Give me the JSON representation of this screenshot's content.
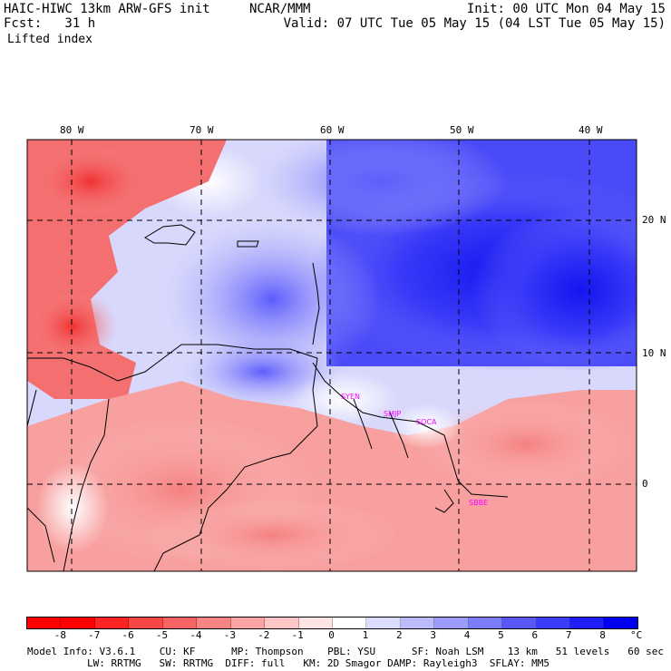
{
  "header": {
    "model_title": "HAIC-HIWC 13km ARW-GFS init",
    "org": "NCAR/MMM",
    "init": "Init: 00 UTC Mon 04 May 15",
    "fcst": "Fcst:   31 h",
    "valid": "Valid: 07 UTC Tue 05 May 15 (04 LST Tue 05 May 15)",
    "field": "Lifted index"
  },
  "map": {
    "lon_labels": [
      "80 W",
      "70 W",
      "60 W",
      "50 W",
      "40 W"
    ],
    "lat_labels": [
      "20 N",
      "10 N",
      "0"
    ],
    "city_labels": [
      "SYEN",
      "SMJP",
      "SOCA",
      "SBBE"
    ]
  },
  "colorbar": {
    "labels": [
      "-8",
      "-7",
      "-6",
      "-5",
      "-4",
      "-3",
      "-2",
      "-1",
      "0",
      "1",
      "2",
      "3",
      "4",
      "5",
      "6",
      "7",
      "8"
    ],
    "unit": "°C",
    "colors": [
      "#ff0000",
      "#ff2424",
      "#fb4646",
      "#f86464",
      "#f88484",
      "#fca4a4",
      "#fec6c6",
      "#ffe4e4",
      "#ffffff",
      "#dcdcff",
      "#bcbcfc",
      "#9c9cfc",
      "#7c7cfc",
      "#5858fc",
      "#3c3cfc",
      "#1e1ef8",
      "#0000f0"
    ]
  },
  "footer": {
    "line1": "Model Info: V3.6.1    CU: KF      MP: Thompson    PBL: YSU      SF: Noah LSM    13 km   51 levels   60 sec",
    "line2": "LW: RRTMG   SW: RRTMG  DIFF: full   KM: 2D Smagor DAMP: Rayleigh3  SFLAY: MM5"
  }
}
